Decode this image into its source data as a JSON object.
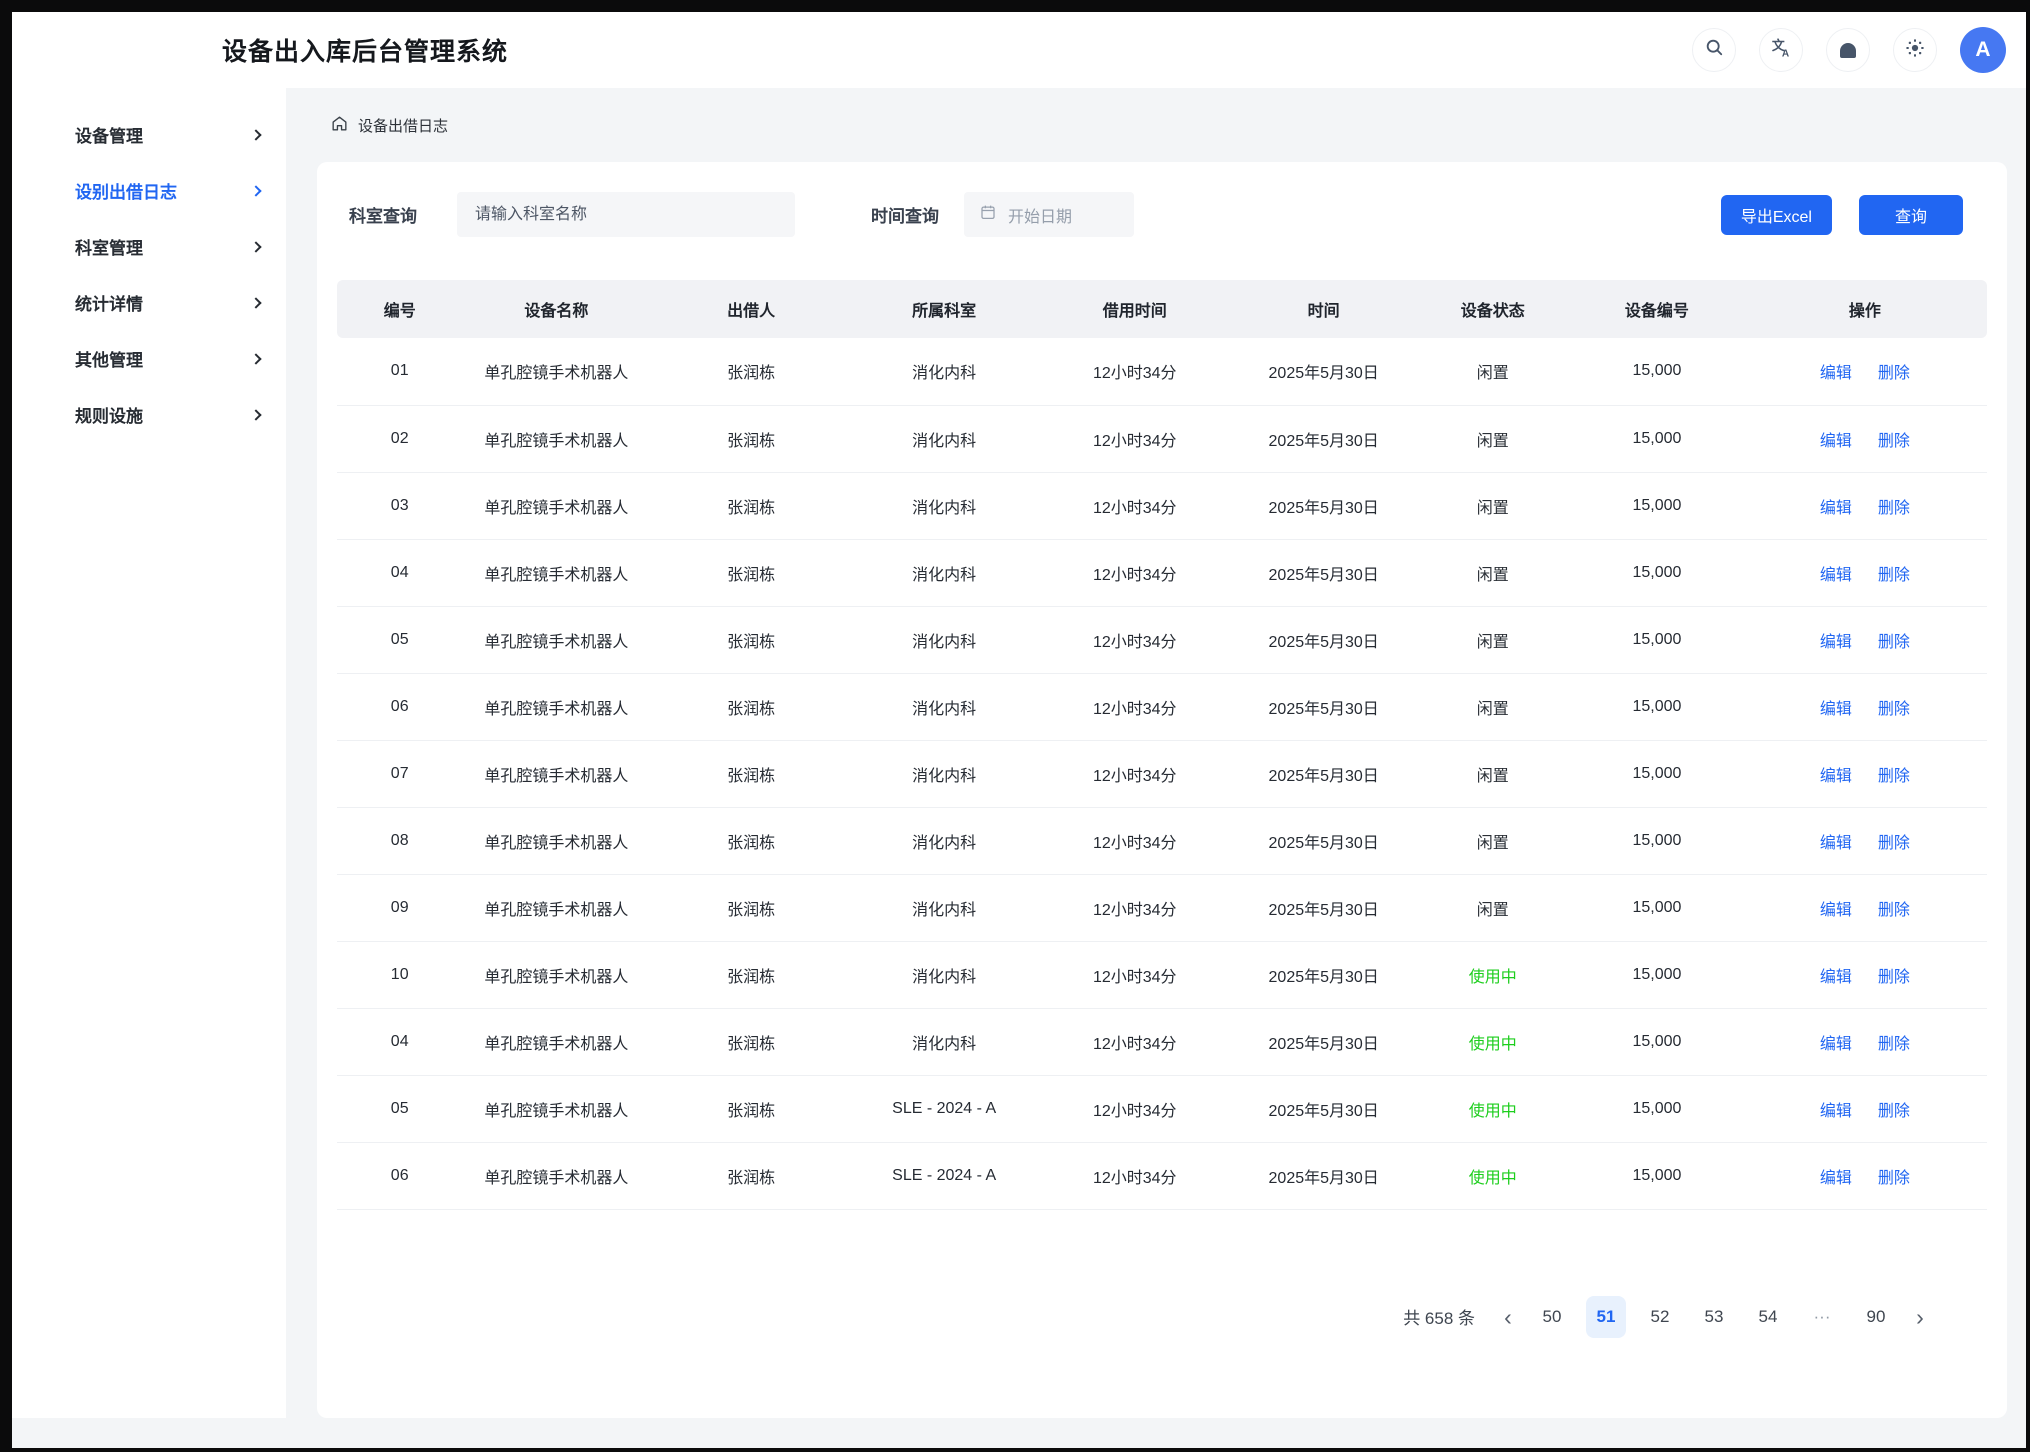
{
  "app": {
    "title": "设备出入库后台管理系统"
  },
  "header": {
    "avatar_label": "A"
  },
  "sidebar": {
    "items": [
      {
        "label": "设备管理",
        "active": false
      },
      {
        "label": "设别出借日志",
        "active": true
      },
      {
        "label": "科室管理",
        "active": false
      },
      {
        "label": "统计详情",
        "active": false
      },
      {
        "label": "其他管理",
        "active": false
      },
      {
        "label": "规则设施",
        "active": false
      }
    ]
  },
  "breadcrumb": {
    "label": "设备出借日志"
  },
  "filters": {
    "dept_label": "科室查询",
    "dept_placeholder": "请输入科室名称",
    "time_label": "时间查询",
    "date_placeholder": "开始日期",
    "export_button": "导出Excel",
    "search_button": "查询"
  },
  "table": {
    "columns": [
      "编号",
      "设备名称",
      "出借人",
      "所属科室",
      "借用时间",
      "时间",
      "设备状态",
      "设备编号",
      "操作"
    ],
    "edit_label": "编辑",
    "delete_label": "删除",
    "rows": [
      {
        "id": "01",
        "device": "单孔腔镜手术机器人",
        "borrower": "张润栋",
        "dept": "消化内科",
        "duration": "12小时34分",
        "date": "2025年5月30日",
        "status": "闲置",
        "status_type": "idle",
        "code": "15,000"
      },
      {
        "id": "02",
        "device": "单孔腔镜手术机器人",
        "borrower": "张润栋",
        "dept": "消化内科",
        "duration": "12小时34分",
        "date": "2025年5月30日",
        "status": "闲置",
        "status_type": "idle",
        "code": "15,000"
      },
      {
        "id": "03",
        "device": "单孔腔镜手术机器人",
        "borrower": "张润栋",
        "dept": "消化内科",
        "duration": "12小时34分",
        "date": "2025年5月30日",
        "status": "闲置",
        "status_type": "idle",
        "code": "15,000"
      },
      {
        "id": "04",
        "device": "单孔腔镜手术机器人",
        "borrower": "张润栋",
        "dept": "消化内科",
        "duration": "12小时34分",
        "date": "2025年5月30日",
        "status": "闲置",
        "status_type": "idle",
        "code": "15,000"
      },
      {
        "id": "05",
        "device": "单孔腔镜手术机器人",
        "borrower": "张润栋",
        "dept": "消化内科",
        "duration": "12小时34分",
        "date": "2025年5月30日",
        "status": "闲置",
        "status_type": "idle",
        "code": "15,000"
      },
      {
        "id": "06",
        "device": "单孔腔镜手术机器人",
        "borrower": "张润栋",
        "dept": "消化内科",
        "duration": "12小时34分",
        "date": "2025年5月30日",
        "status": "闲置",
        "status_type": "idle",
        "code": "15,000"
      },
      {
        "id": "07",
        "device": "单孔腔镜手术机器人",
        "borrower": "张润栋",
        "dept": "消化内科",
        "duration": "12小时34分",
        "date": "2025年5月30日",
        "status": "闲置",
        "status_type": "idle",
        "code": "15,000"
      },
      {
        "id": "08",
        "device": "单孔腔镜手术机器人",
        "borrower": "张润栋",
        "dept": "消化内科",
        "duration": "12小时34分",
        "date": "2025年5月30日",
        "status": "闲置",
        "status_type": "idle",
        "code": "15,000"
      },
      {
        "id": "09",
        "device": "单孔腔镜手术机器人",
        "borrower": "张润栋",
        "dept": "消化内科",
        "duration": "12小时34分",
        "date": "2025年5月30日",
        "status": "闲置",
        "status_type": "idle",
        "code": "15,000"
      },
      {
        "id": "10",
        "device": "单孔腔镜手术机器人",
        "borrower": "张润栋",
        "dept": "消化内科",
        "duration": "12小时34分",
        "date": "2025年5月30日",
        "status": "使用中",
        "status_type": "in-use",
        "code": "15,000"
      },
      {
        "id": "04",
        "device": "单孔腔镜手术机器人",
        "borrower": "张润栋",
        "dept": "消化内科",
        "duration": "12小时34分",
        "date": "2025年5月30日",
        "status": "使用中",
        "status_type": "in-use",
        "code": "15,000"
      },
      {
        "id": "05",
        "device": "单孔腔镜手术机器人",
        "borrower": "张润栋",
        "dept": "SLE - 2024 - A",
        "duration": "12小时34分",
        "date": "2025年5月30日",
        "status": "使用中",
        "status_type": "in-use",
        "code": "15,000"
      },
      {
        "id": "06",
        "device": "单孔腔镜手术机器人",
        "borrower": "张润栋",
        "dept": "SLE - 2024 - A",
        "duration": "12小时34分",
        "date": "2025年5月30日",
        "status": "使用中",
        "status_type": "in-use",
        "code": "15,000"
      }
    ]
  },
  "pagination": {
    "total": "共 658 条",
    "prev": "‹",
    "next": "›",
    "pages": [
      {
        "label": "50",
        "active": false
      },
      {
        "label": "51",
        "active": true
      },
      {
        "label": "52",
        "active": false
      },
      {
        "label": "53",
        "active": false
      },
      {
        "label": "54",
        "active": false
      },
      {
        "label": "···",
        "active": false,
        "ellipsis": true
      },
      {
        "label": "90",
        "active": false
      }
    ]
  },
  "colors": {
    "primary": "#2166f2",
    "status_idle": "#2a2f36",
    "status_in_use": "#1dce1d",
    "avatar_bg": "#4678f2"
  }
}
